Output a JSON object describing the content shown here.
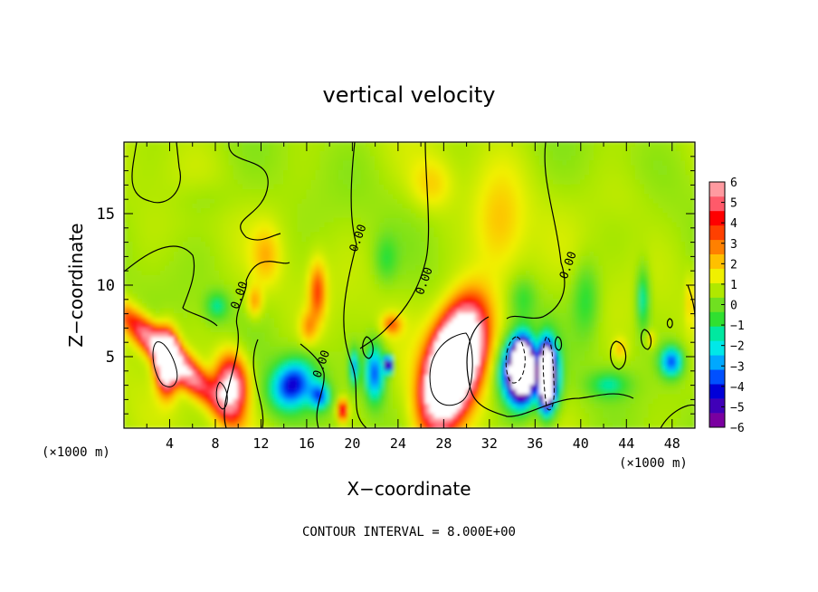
{
  "chart_data": {
    "type": "heatmap",
    "title": "vertical velocity",
    "xlabel": "X−coordinate",
    "ylabel": "Z−coordinate",
    "x_unit": "(×1000 m)",
    "x_unit_right": "(×1000 m)",
    "footer": "CONTOUR INTERVAL = 8.000E+00",
    "xlim": [
      0,
      50
    ],
    "ylim": [
      0,
      20
    ],
    "x_ticks": [
      4,
      8,
      12,
      16,
      20,
      24,
      28,
      32,
      36,
      40,
      44,
      48
    ],
    "x_tick_labels": [
      "4",
      "8",
      "12",
      "16",
      "20",
      "24",
      "28",
      "32",
      "36",
      "40",
      "44",
      "48"
    ],
    "y_ticks": [
      5,
      10,
      15
    ],
    "y_tick_labels": [
      "5",
      "10",
      "15"
    ],
    "colorbar": {
      "vmin": -6,
      "vmax": 6,
      "tick_labels": [
        "6",
        "5",
        "4",
        "3",
        "2",
        "1",
        "0",
        "−1",
        "−2",
        "−3",
        "−4",
        "−5",
        "−6"
      ],
      "colors": [
        "#7a00a0",
        "#4000b8",
        "#0000d8",
        "#0050ff",
        "#00a8ff",
        "#00e8e8",
        "#00e8a0",
        "#30e030",
        "#70e020",
        "#b0e800",
        "#f0f000",
        "#ffc000",
        "#ff8000",
        "#ff4000",
        "#ff0000",
        "#ff5a6a",
        "#ff9aa0"
      ]
    },
    "contour_labels": [
      {
        "text": "0.00",
        "x": 10.4,
        "y": 9.2,
        "angle": -70
      },
      {
        "text": "0.00",
        "x": 17.6,
        "y": 4.4,
        "angle": -70
      },
      {
        "text": "0.00",
        "x": 20.8,
        "y": 13.2,
        "angle": -70
      },
      {
        "text": "0.00",
        "x": 26.6,
        "y": 10.2,
        "angle": -70
      },
      {
        "text": "0.00",
        "x": 39.2,
        "y": 11.3,
        "angle": -70
      }
    ],
    "cells": [
      {
        "x": 4.0,
        "z": 5.0,
        "w": -1.2,
        "a": 2.2,
        "b": 4.2,
        "value": 7.5
      },
      {
        "x": 3.8,
        "z": 4.6,
        "w": 0,
        "a": 1.2,
        "b": 2.6,
        "value": 11
      },
      {
        "x": 9.4,
        "z": 2.8,
        "w": 0,
        "a": 1.9,
        "b": 3.0,
        "value": 7
      },
      {
        "x": 29.0,
        "z": 4.6,
        "w": 0.3,
        "a": 3.2,
        "b": 5.6,
        "value": 9
      },
      {
        "x": 28.8,
        "z": 4.2,
        "w": 0.3,
        "a": 2.3,
        "b": 4.3,
        "value": 12
      },
      {
        "x": 34.5,
        "z": 3.8,
        "w": 0,
        "a": 2.0,
        "b": 3.0,
        "value": -8
      },
      {
        "x": 37.2,
        "z": 3.6,
        "w": 0,
        "a": 1.3,
        "b": 3.2,
        "value": -8
      },
      {
        "x": 35.0,
        "z": 4.2,
        "w": 0,
        "a": 1.2,
        "b": 2.6,
        "value": -12
      },
      {
        "x": 37.0,
        "z": 3.6,
        "w": 0,
        "a": 0.7,
        "b": 2.6,
        "value": -12
      },
      {
        "x": 14.8,
        "z": 3.0,
        "w": 0.2,
        "a": 2.6,
        "b": 2.4,
        "value": -5.2
      },
      {
        "x": 17.2,
        "z": 2.2,
        "w": 0,
        "a": 1.2,
        "b": 1.3,
        "value": -4
      },
      {
        "x": 22.0,
        "z": 3.8,
        "w": 0,
        "a": 1.2,
        "b": 2.8,
        "value": -4.5
      },
      {
        "x": 23.2,
        "z": 4.4,
        "w": 0,
        "a": 0.5,
        "b": 0.8,
        "value": -8
      },
      {
        "x": 20.2,
        "z": 4.2,
        "w": 0,
        "a": 0.6,
        "b": 1.8,
        "value": -3.5
      },
      {
        "x": 48.0,
        "z": 4.6,
        "w": 0,
        "a": 1.4,
        "b": 1.5,
        "value": -4.5
      },
      {
        "x": 45.5,
        "z": 9.0,
        "w": 0,
        "a": 0.8,
        "b": 3.0,
        "value": -2.5
      },
      {
        "x": 42.5,
        "z": 3.0,
        "w": 0,
        "a": 2.5,
        "b": 1.3,
        "value": -2.0
      },
      {
        "x": 40.5,
        "z": 9.0,
        "w": 0,
        "a": 1.6,
        "b": 3.5,
        "value": -1.6
      },
      {
        "x": 17.0,
        "z": 9.5,
        "w": 0,
        "a": 1.0,
        "b": 2.8,
        "value": 3
      },
      {
        "x": 16.2,
        "z": 7.0,
        "w": 0,
        "a": 1.0,
        "b": 1.6,
        "value": 1.8
      },
      {
        "x": 19.2,
        "z": 1.2,
        "w": 0,
        "a": 0.6,
        "b": 1.0,
        "value": 5
      },
      {
        "x": 23.5,
        "z": 7.2,
        "w": 0,
        "a": 1.2,
        "b": 1.0,
        "value": 2.5
      },
      {
        "x": 11.5,
        "z": 8.8,
        "w": 0,
        "a": 0.9,
        "b": 1.5,
        "value": 2
      },
      {
        "x": 8.2,
        "z": 8.5,
        "w": 0,
        "a": 1.4,
        "b": 1.4,
        "value": -2
      },
      {
        "x": 12.5,
        "z": 12.0,
        "w": 0,
        "a": 1.7,
        "b": 2.8,
        "value": 1.4
      },
      {
        "x": 23.0,
        "z": 11.8,
        "w": 0,
        "a": 1.4,
        "b": 2.2,
        "value": -1.3
      },
      {
        "x": 33.0,
        "z": 14.0,
        "w": 0,
        "a": 3.0,
        "b": 5.0,
        "value": 1.4
      },
      {
        "x": 27.0,
        "z": 17.0,
        "w": 0,
        "a": 2.5,
        "b": 2.5,
        "value": 1.2
      },
      {
        "x": 35.0,
        "z": 9.0,
        "w": 0,
        "a": 1.6,
        "b": 2.0,
        "value": -1.3
      },
      {
        "x": 43.5,
        "z": 5.5,
        "w": 0,
        "a": 0.8,
        "b": 1.0,
        "value": 1.5
      },
      {
        "x": 46.2,
        "z": 6.2,
        "w": 0,
        "a": 0.5,
        "b": 0.8,
        "value": 1.5
      },
      {
        "x": 49.6,
        "z": 8.8,
        "w": 0,
        "a": 0.5,
        "b": 2.5,
        "value": 1.2
      },
      {
        "x": 7.0,
        "z": 16.0,
        "w": 0,
        "a": 4.0,
        "b": 2.0,
        "value": -0.4
      },
      {
        "x": 44.0,
        "z": 16.0,
        "w": 0,
        "a": 4.0,
        "b": 3.0,
        "value": 0.3
      }
    ]
  }
}
